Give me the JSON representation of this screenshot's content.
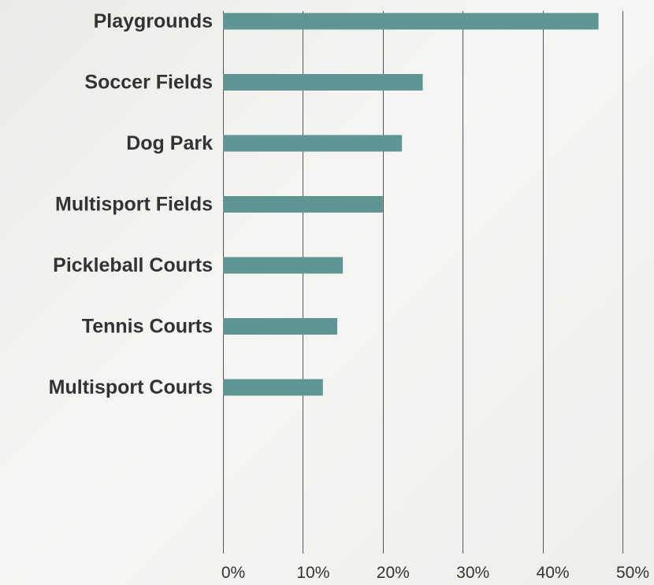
{
  "chart_data": {
    "type": "bar",
    "orientation": "horizontal",
    "categories": [
      "Playgrounds",
      "Soccer Fields",
      "Dog Park",
      "Multisport Fields",
      "Pickleball Courts",
      "Tennis Courts",
      "Multisport Courts"
    ],
    "values": [
      47,
      25,
      22.4,
      20,
      15,
      14.3,
      12.5
    ],
    "value_unit": "%",
    "xlim": [
      0,
      50
    ],
    "x_ticks": [
      0,
      10,
      20,
      30,
      40,
      50
    ],
    "x_tick_labels": [
      "0%",
      "10%",
      "20%",
      "30%",
      "40%",
      "50%"
    ],
    "title": "",
    "xlabel": "",
    "ylabel": "",
    "grid": "vertical",
    "legend": "none",
    "bar_color": "#5f9593"
  }
}
